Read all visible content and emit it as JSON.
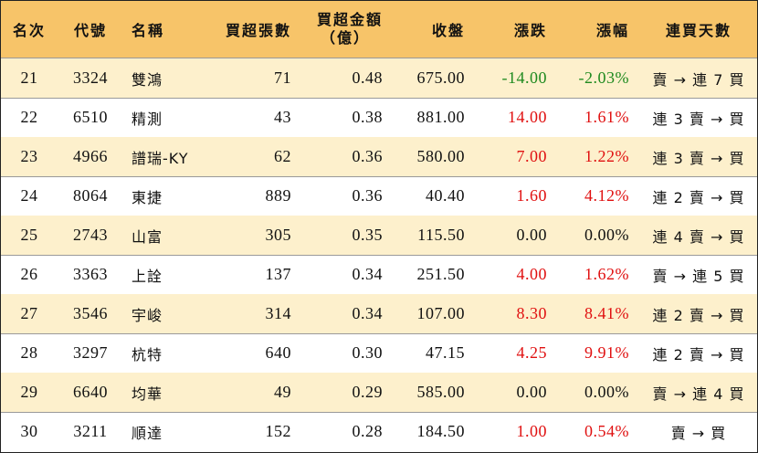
{
  "headers": {
    "rank": "名次",
    "code": "代號",
    "name": "名稱",
    "lots": "買超張數",
    "amount_line1": "買超金額",
    "amount_line2": "（億）",
    "close": "收盤",
    "change": "漲跌",
    "pct": "漲幅",
    "days": "連買天數"
  },
  "rows": [
    {
      "rank": "21",
      "code": "3324",
      "name": "雙鴻",
      "lots": "71",
      "amount": "0.48",
      "close": "675.00",
      "change": "-14.00",
      "pct": "-2.03%",
      "days": "賣 → 連 7 買",
      "trend": "down"
    },
    {
      "rank": "22",
      "code": "6510",
      "name": "精測",
      "lots": "43",
      "amount": "0.38",
      "close": "881.00",
      "change": "14.00",
      "pct": "1.61%",
      "days": "連 3 賣 → 買",
      "trend": "up"
    },
    {
      "rank": "23",
      "code": "4966",
      "name": "譜瑞-KY",
      "lots": "62",
      "amount": "0.36",
      "close": "580.00",
      "change": "7.00",
      "pct": "1.22%",
      "days": "連 3 賣 → 買",
      "trend": "up"
    },
    {
      "rank": "24",
      "code": "8064",
      "name": "東捷",
      "lots": "889",
      "amount": "0.36",
      "close": "40.40",
      "change": "1.60",
      "pct": "4.12%",
      "days": "連 2 賣 → 買",
      "trend": "up"
    },
    {
      "rank": "25",
      "code": "2743",
      "name": "山富",
      "lots": "305",
      "amount": "0.35",
      "close": "115.50",
      "change": "0.00",
      "pct": "0.00%",
      "days": "連 4 賣 → 買",
      "trend": "flat"
    },
    {
      "rank": "26",
      "code": "3363",
      "name": "上詮",
      "lots": "137",
      "amount": "0.34",
      "close": "251.50",
      "change": "4.00",
      "pct": "1.62%",
      "days": "賣 → 連 5 買",
      "trend": "up"
    },
    {
      "rank": "27",
      "code": "3546",
      "name": "宇峻",
      "lots": "314",
      "amount": "0.34",
      "close": "107.00",
      "change": "8.30",
      "pct": "8.41%",
      "days": "連 2 賣 → 買",
      "trend": "up"
    },
    {
      "rank": "28",
      "code": "3297",
      "name": "杭特",
      "lots": "640",
      "amount": "0.30",
      "close": "47.15",
      "change": "4.25",
      "pct": "9.91%",
      "days": "連 2 賣 → 買",
      "trend": "up"
    },
    {
      "rank": "29",
      "code": "6640",
      "name": "均華",
      "lots": "49",
      "amount": "0.29",
      "close": "585.00",
      "change": "0.00",
      "pct": "0.00%",
      "days": "賣 → 連 4 買",
      "trend": "flat"
    },
    {
      "rank": "30",
      "code": "3211",
      "name": "順達",
      "lots": "152",
      "amount": "0.28",
      "close": "184.50",
      "change": "1.00",
      "pct": "0.54%",
      "days": "賣 → 買",
      "trend": "up"
    }
  ],
  "colors": {
    "header_bg": "#f7c469",
    "stripe_bg": "#fdf0cc",
    "up": "#e01010",
    "down": "#1f8a1f",
    "flat": "#111111"
  }
}
